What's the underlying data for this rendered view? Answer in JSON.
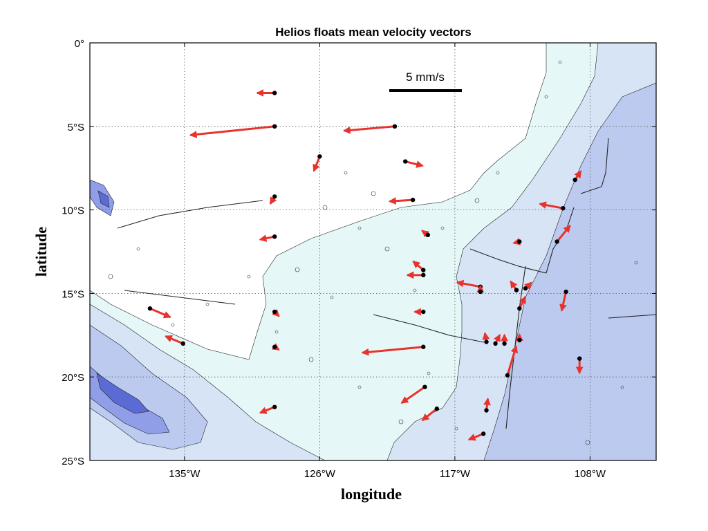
{
  "figure": {
    "title": "Helios floats mean velocity vectors",
    "xlabel": "longitude",
    "ylabel": "latitude",
    "scale_label": "5 mm/s"
  },
  "colors": {
    "arrow": "#e8322c",
    "float_dot": "#000000",
    "shallow": "#ffffff",
    "depth_1": "#e6f7f8",
    "depth_2": "#d7e4f6",
    "depth_3": "#bccaf0",
    "depth_4": "#8f9ee6",
    "depth_5": "#5b6bd6"
  },
  "chart_data": {
    "type": "map-vector",
    "x_axis": {
      "unit": "degrees longitude (negative = W)",
      "range": [
        -141.3,
        -103.6
      ],
      "ticks": [
        -135,
        -126,
        -117,
        -108
      ],
      "tick_labels": [
        "135°W",
        "126°W",
        "117°W",
        "108°W"
      ]
    },
    "y_axis": {
      "unit": "degrees latitude (negative = S)",
      "range": [
        -25,
        0
      ],
      "ticks": [
        0,
        -5,
        -10,
        -15,
        -20,
        -25
      ],
      "tick_labels": [
        "0°",
        "5°S",
        "10°S",
        "15°S",
        "20°S",
        "25°S"
      ]
    },
    "grid": true,
    "scale_vector_mm_s": 5,
    "vectors_mm_s": [
      {
        "lon": -129.0,
        "lat": -3.0,
        "u": -1.2,
        "v": 0.0
      },
      {
        "lon": -129.0,
        "lat": -5.0,
        "u": -5.8,
        "v": -0.6
      },
      {
        "lon": -121.0,
        "lat": -5.0,
        "u": -3.5,
        "v": -0.3
      },
      {
        "lon": -126.0,
        "lat": -6.8,
        "u": -0.4,
        "v": -1.0
      },
      {
        "lon": -120.3,
        "lat": -7.1,
        "u": 1.2,
        "v": -0.3
      },
      {
        "lon": -129.0,
        "lat": -9.2,
        "u": -0.3,
        "v": -0.5
      },
      {
        "lon": -119.8,
        "lat": -9.4,
        "u": -1.6,
        "v": -0.1
      },
      {
        "lon": -118.8,
        "lat": -11.5,
        "u": -0.4,
        "v": 0.3
      },
      {
        "lon": -129.0,
        "lat": -11.6,
        "u": -1.0,
        "v": -0.2
      },
      {
        "lon": -112.7,
        "lat": -11.9,
        "u": -0.4,
        "v": -0.1
      },
      {
        "lon": -110.2,
        "lat": -11.9,
        "u": 0.9,
        "v": 1.1
      },
      {
        "lon": -109.0,
        "lat": -8.2,
        "u": 0.4,
        "v": 0.6
      },
      {
        "lon": -109.8,
        "lat": -9.9,
        "u": -1.6,
        "v": 0.3
      },
      {
        "lon": -119.1,
        "lat": -13.6,
        "u": -0.7,
        "v": 0.6
      },
      {
        "lon": -119.1,
        "lat": -13.9,
        "u": -1.1,
        "v": 0.0
      },
      {
        "lon": -115.3,
        "lat": -14.6,
        "u": -1.6,
        "v": 0.3
      },
      {
        "lon": -115.3,
        "lat": -14.9,
        "u": 0.0,
        "v": 0.4
      },
      {
        "lon": -112.9,
        "lat": -14.8,
        "u": -0.4,
        "v": 0.6
      },
      {
        "lon": -112.3,
        "lat": -14.7,
        "u": 0.4,
        "v": 0.4
      },
      {
        "lon": -112.7,
        "lat": -15.9,
        "u": 0.4,
        "v": 0.8
      },
      {
        "lon": -109.6,
        "lat": -14.9,
        "u": -0.3,
        "v": -1.3
      },
      {
        "lon": -119.1,
        "lat": -16.1,
        "u": -0.6,
        "v": 0.0
      },
      {
        "lon": -129.0,
        "lat": -16.1,
        "u": 0.3,
        "v": -0.3
      },
      {
        "lon": -137.3,
        "lat": -15.9,
        "u": 1.4,
        "v": -0.6
      },
      {
        "lon": -135.1,
        "lat": -18.0,
        "u": -1.2,
        "v": 0.5
      },
      {
        "lon": -114.9,
        "lat": -17.9,
        "u": -0.1,
        "v": 0.6
      },
      {
        "lon": -114.3,
        "lat": -18.0,
        "u": 0.3,
        "v": 0.6
      },
      {
        "lon": -113.7,
        "lat": -18.0,
        "u": 0.0,
        "v": 0.6
      },
      {
        "lon": -112.7,
        "lat": -17.8,
        "u": 0.0,
        "v": 0.4
      },
      {
        "lon": -119.1,
        "lat": -18.2,
        "u": -4.2,
        "v": -0.4
      },
      {
        "lon": -129.0,
        "lat": -18.2,
        "u": 0.3,
        "v": -0.2
      },
      {
        "lon": -113.5,
        "lat": -19.9,
        "u": 0.6,
        "v": 2.0
      },
      {
        "lon": -108.7,
        "lat": -18.9,
        "u": 0.0,
        "v": -1.0
      },
      {
        "lon": -119.0,
        "lat": -20.6,
        "u": -1.6,
        "v": -1.1
      },
      {
        "lon": -118.2,
        "lat": -21.9,
        "u": -1.0,
        "v": -0.8
      },
      {
        "lon": -114.9,
        "lat": -22.0,
        "u": 0.1,
        "v": 0.8
      },
      {
        "lon": -129.0,
        "lat": -21.8,
        "u": -1.0,
        "v": -0.4
      },
      {
        "lon": -115.1,
        "lat": -23.4,
        "u": -1.0,
        "v": -0.4
      }
    ]
  }
}
